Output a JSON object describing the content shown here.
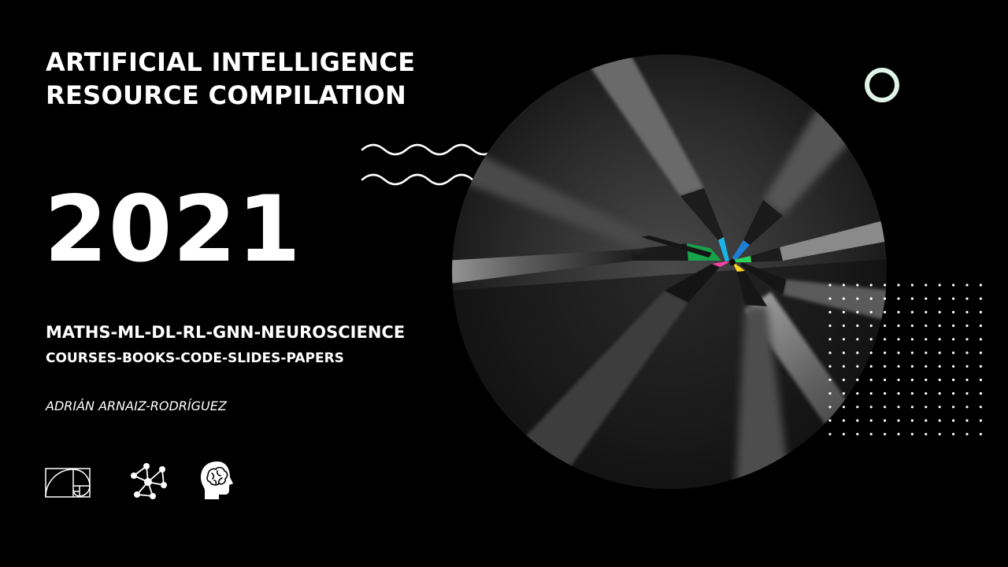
{
  "title": {
    "line1": "ARTIFICIAL INTELLIGENCE",
    "line2": "RESOURCE COMPILATION"
  },
  "year": "2021",
  "topics": "MATHS-ML-DL-RL-GNN-NEUROSCIENCE",
  "resources": "COURSES-BOOKS-CODE-SLIDES-PAPERS",
  "author": "ADRIÁN ARNAIZ-RODRÍGUEZ",
  "icons": [
    "golden-ratio-icon",
    "network-graph-icon",
    "brain-head-icon"
  ],
  "colors": {
    "background": "#000000",
    "text": "#ffffff",
    "ring": "#dff3e8",
    "pencil_tips": [
      "#1ab3e8",
      "#1f7fd6",
      "#2bd35a",
      "#16a34a",
      "#ff3fa4",
      "#ffd21f"
    ]
  }
}
